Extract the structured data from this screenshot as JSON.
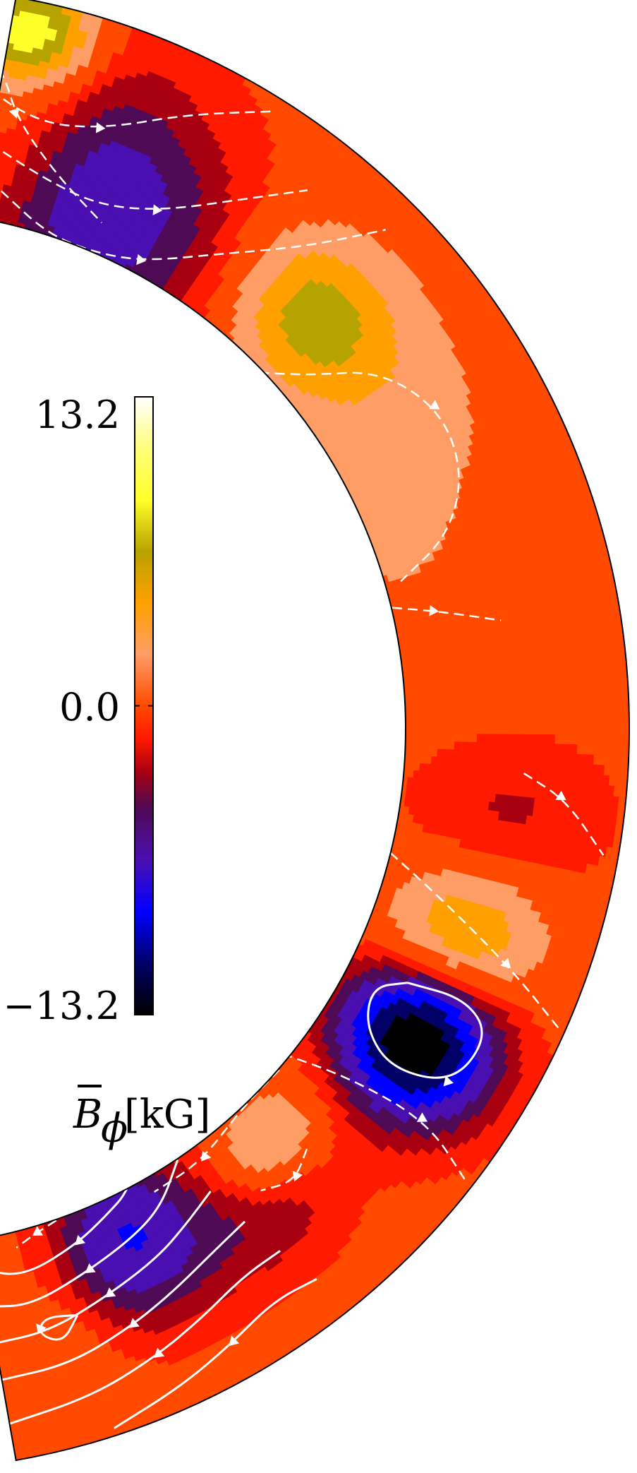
{
  "chart_data": {
    "type": "heatmap",
    "title": "",
    "geometry": "meridional half-annulus",
    "colorbar": {
      "label_symbol": "B",
      "label_subscript": "ϕ",
      "label_unit": "[kG]",
      "max_label": "13.2",
      "zero_label": "0.0",
      "min_label": "−13.2",
      "range": [
        -13.2,
        13.2
      ],
      "stops": [
        {
          "value": 13.2,
          "color": "#ffffff"
        },
        {
          "value": 11.0,
          "color": "#fffe7a"
        },
        {
          "value": 8.8,
          "color": "#ffff2a"
        },
        {
          "value": 6.6,
          "color": "#b7a300"
        },
        {
          "value": 4.4,
          "color": "#ffa000"
        },
        {
          "value": 2.2,
          "color": "#ff9d66"
        },
        {
          "value": 0.0,
          "color": "#ff4a00"
        },
        {
          "value": -1.4,
          "color": "#ff1a00"
        },
        {
          "value": -2.8,
          "color": "#a80010"
        },
        {
          "value": -4.4,
          "color": "#4e0a55"
        },
        {
          "value": -6.6,
          "color": "#4a0fb0"
        },
        {
          "value": -8.8,
          "color": "#0000ff"
        },
        {
          "value": -11.0,
          "color": "#000066"
        },
        {
          "value": -13.2,
          "color": "#000000"
        }
      ]
    },
    "background_field": 0.8,
    "features": [
      {
        "lat": 78,
        "r": 0.96,
        "value": 11.0,
        "lat_width": 5,
        "r_width": 0.07
      },
      {
        "lat": 70,
        "r": 0.78,
        "value": -3.5,
        "lat_width": 10,
        "r_width": 0.2
      },
      {
        "lat": 62,
        "r": 0.75,
        "value": -2.8,
        "lat_width": 12,
        "r_width": 0.15
      },
      {
        "lat": 76,
        "r": 0.82,
        "value": 2.5,
        "lat_width": 6,
        "r_width": 0.1
      },
      {
        "lat": 44,
        "r": 0.8,
        "value": 7.5,
        "lat_width": 8,
        "r_width": 0.1
      },
      {
        "lat": 32,
        "r": 0.8,
        "value": 3.0,
        "lat_width": 12,
        "r_width": 0.15
      },
      {
        "lat": 20,
        "r": 0.72,
        "value": 2.2,
        "lat_width": 8,
        "r_width": 0.1
      },
      {
        "lat": -8,
        "r": 0.85,
        "value": -1.6,
        "lat_width": 7,
        "r_width": 0.14
      },
      {
        "lat": -20,
        "r": 0.83,
        "value": 7.0,
        "lat_width": 6,
        "r_width": 0.1
      },
      {
        "lat": -31,
        "r": 0.83,
        "value": -13.2,
        "lat_width": 7,
        "r_width": 0.11
      },
      {
        "lat": -48,
        "r": 0.76,
        "value": 6.0,
        "lat_width": 6,
        "r_width": 0.06
      },
      {
        "lat": -52,
        "r": 0.82,
        "value": -2.5,
        "lat_width": 8,
        "r_width": 0.1
      },
      {
        "lat": -65,
        "r": 0.76,
        "value": -6.6,
        "lat_width": 8,
        "r_width": 0.12
      },
      {
        "lat": -74,
        "r": 0.86,
        "value": 2.2,
        "lat_width": 5,
        "r_width": 0.1
      }
    ],
    "field_lines": [
      {
        "style": "dashed",
        "points": [
          [
            82,
            0.88
          ],
          [
            76,
            0.84
          ],
          [
            70,
            0.86
          ],
          [
            64,
            0.92
          ],
          [
            58,
            0.98
          ]
        ]
      },
      {
        "style": "dashed",
        "points": [
          [
            80,
            0.8
          ],
          [
            74,
            0.77
          ],
          [
            68,
            0.76
          ],
          [
            62,
            0.79
          ],
          [
            56,
            0.86
          ],
          [
            52,
            0.92
          ]
        ]
      },
      {
        "style": "dashed",
        "points": [
          [
            78,
            0.74
          ],
          [
            72,
            0.7
          ],
          [
            66,
            0.7
          ],
          [
            61,
            0.72
          ],
          [
            55,
            0.78
          ],
          [
            49,
            0.86
          ],
          [
            45,
            0.95
          ]
        ]
      },
      {
        "style": "dashed",
        "points": [
          [
            84,
            0.96
          ],
          [
            80,
            0.9
          ],
          [
            78,
            0.84
          ],
          [
            73,
            0.78
          ],
          [
            67,
            0.74
          ]
        ]
      },
      {
        "style": "dashed",
        "points": [
          [
            45,
            0.68
          ],
          [
            40,
            0.74
          ],
          [
            36,
            0.82
          ],
          [
            30,
            0.86
          ],
          [
            24,
            0.85
          ],
          [
            19,
            0.8
          ],
          [
            16,
            0.72
          ]
        ]
      },
      {
        "style": "dashed",
        "points": [
          [
            14,
            0.68
          ],
          [
            12,
            0.76
          ],
          [
            10,
            0.84
          ]
        ]
      },
      {
        "style": "dashed",
        "points": [
          [
            -4,
            0.86
          ],
          [
            -6,
            0.92
          ],
          [
            -10,
            0.98
          ]
        ]
      },
      {
        "style": "dashed",
        "points": [
          [
            -13,
            0.68
          ],
          [
            -17,
            0.78
          ],
          [
            -21,
            0.9
          ],
          [
            -24,
            0.99
          ]
        ]
      },
      {
        "style": "dashed",
        "points": [
          [
            -40,
            0.67
          ],
          [
            -37,
            0.78
          ],
          [
            -36,
            0.9
          ],
          [
            -38,
            0.99
          ]
        ]
      },
      {
        "style": "dashed",
        "points": [
          [
            -41,
            0.7
          ],
          [
            -47,
            0.7
          ],
          [
            -54,
            0.72
          ],
          [
            -60,
            0.72
          ]
        ]
      },
      {
        "style": "dashed",
        "points": [
          [
            -71,
            0.7
          ],
          [
            -74,
            0.71
          ],
          [
            -76,
            0.72
          ]
        ]
      },
      {
        "style": "dashed",
        "points": [
          [
            -45,
            0.8
          ],
          [
            -48,
            0.82
          ],
          [
            -51,
            0.8
          ]
        ]
      },
      {
        "style": "solid",
        "points": [
          [
            -26,
            0.78
          ],
          [
            -28,
            0.74
          ],
          [
            -32,
            0.76
          ],
          [
            -34,
            0.82
          ],
          [
            -32,
            0.9
          ],
          [
            -27,
            0.91
          ],
          [
            -25,
            0.86
          ],
          [
            -26,
            0.78
          ]
        ]
      },
      {
        "style": "solid",
        "points": [
          [
            -58,
            0.64
          ],
          [
            -62,
            0.7
          ],
          [
            -66,
            0.72
          ],
          [
            -70,
            0.74
          ],
          [
            -76,
            0.76
          ],
          [
            -80,
            0.74
          ]
        ]
      },
      {
        "style": "solid",
        "points": [
          [
            -56,
            0.7
          ],
          [
            -60,
            0.74
          ],
          [
            -64,
            0.76
          ],
          [
            -70,
            0.78
          ],
          [
            -76,
            0.8
          ],
          [
            -80,
            0.79
          ]
        ]
      },
      {
        "style": "solid",
        "points": [
          [
            -55,
            0.76
          ],
          [
            -59,
            0.78
          ],
          [
            -63,
            0.8
          ],
          [
            -69,
            0.82
          ],
          [
            -75,
            0.84
          ],
          [
            -80,
            0.84
          ]
        ]
      },
      {
        "style": "solid",
        "points": [
          [
            -54,
            0.82
          ],
          [
            -58,
            0.83
          ],
          [
            -63,
            0.85
          ],
          [
            -68,
            0.87
          ],
          [
            -74,
            0.89
          ],
          [
            -80,
            0.89
          ]
        ]
      },
      {
        "style": "solid",
        "points": [
          [
            -53,
            0.88
          ],
          [
            -57,
            0.88
          ],
          [
            -62,
            0.9
          ],
          [
            -67,
            0.92
          ],
          [
            -73,
            0.94
          ],
          [
            -80,
            0.95
          ]
        ]
      },
      {
        "style": "solid",
        "points": [
          [
            -52,
            0.94
          ],
          [
            -56,
            0.93
          ],
          [
            -61,
            0.95
          ],
          [
            -66,
            0.97
          ],
          [
            -72,
            0.99
          ]
        ]
      },
      {
        "style": "solid",
        "points": [
          [
            -72,
            0.83
          ],
          [
            -75,
            0.82
          ],
          [
            -76,
            0.84
          ],
          [
            -74,
            0.86
          ],
          [
            -72,
            0.83
          ]
        ]
      }
    ]
  }
}
